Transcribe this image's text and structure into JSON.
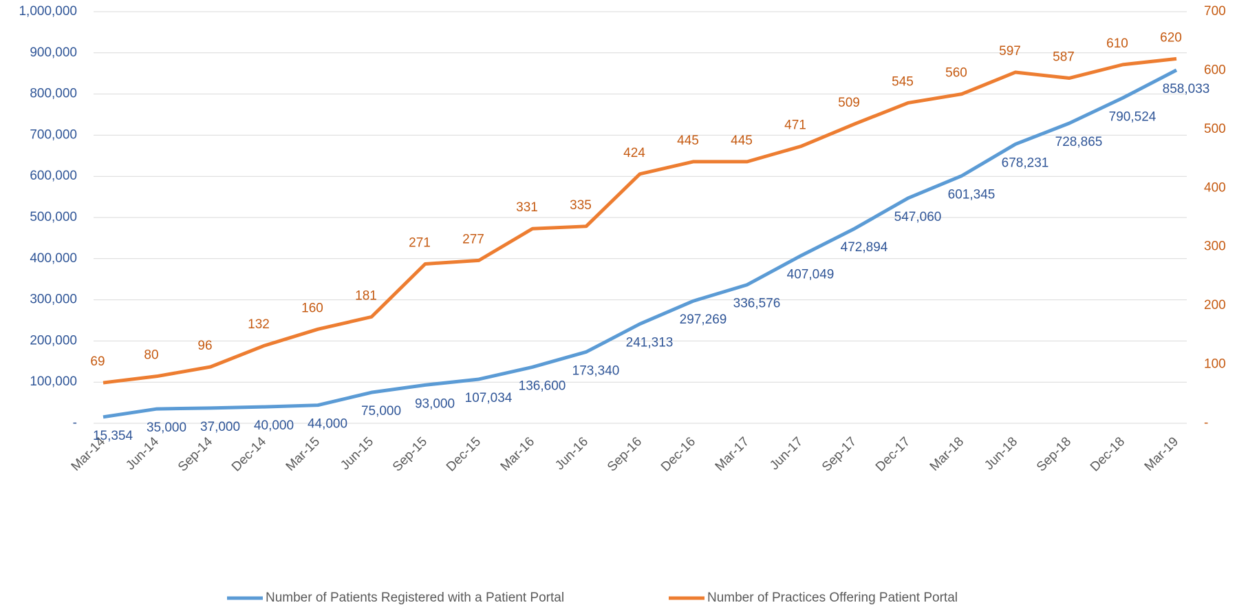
{
  "chart_data": {
    "type": "line",
    "categories": [
      "Mar-14",
      "Jun-14",
      "Sep-14",
      "Dec-14",
      "Mar-15",
      "Jun-15",
      "Sep-15",
      "Dec-15",
      "Mar-16",
      "Jun-16",
      "Sep-16",
      "Dec-16",
      "Mar-17",
      "Jun-17",
      "Sep-17",
      "Dec-17",
      "Mar-18",
      "Jun-18",
      "Sep-18",
      "Dec-18",
      "Mar-19"
    ],
    "series": [
      {
        "name": "Number of Patients Registered with a Patient Portal",
        "color": "#5b9bd5",
        "label_color": "#2f5597",
        "values": [
          15354,
          35000,
          37000,
          40000,
          44000,
          75000,
          93000,
          107034,
          136600,
          173340,
          241313,
          297269,
          336576,
          407049,
          472894,
          547060,
          601345,
          678231,
          728865,
          790524,
          858033
        ],
        "value_labels": [
          "15,354",
          "35,000",
          "37,000",
          "40,000",
          "44,000",
          "75,000",
          "93,000",
          "107,034",
          "136,600",
          "173,340",
          "241,313",
          "297,269",
          "336,576",
          "407,049",
          "472,894",
          "547,060",
          "601,345",
          "678,231",
          "728,865",
          "790,524",
          "858,033"
        ]
      },
      {
        "name": "Number of Practices Offering Patient Portal",
        "color": "#ed7d31",
        "label_color": "#c55a11",
        "axis": "y2",
        "values": [
          69,
          80,
          96,
          132,
          160,
          181,
          271,
          277,
          331,
          335,
          424,
          445,
          445,
          471,
          509,
          545,
          560,
          597,
          587,
          610,
          620
        ]
      }
    ],
    "ylim": [
      0,
      1000000
    ],
    "yticks": [
      {
        "value": 0,
        "label": "-"
      },
      {
        "value": 100000,
        "label": "100,000"
      },
      {
        "value": 200000,
        "label": "200,000"
      },
      {
        "value": 300000,
        "label": "300,000"
      },
      {
        "value": 400000,
        "label": "400,000"
      },
      {
        "value": 500000,
        "label": "500,000"
      },
      {
        "value": 600000,
        "label": "600,000"
      },
      {
        "value": 700000,
        "label": "700,000"
      },
      {
        "value": 800000,
        "label": "800,000"
      },
      {
        "value": 900000,
        "label": "900,000"
      },
      {
        "value": 1000000,
        "label": "1,000,000"
      }
    ],
    "y2lim": [
      0,
      700
    ],
    "y2ticks": [
      {
        "value": 0,
        "label": "-"
      },
      100,
      200,
      300,
      400,
      500,
      600,
      700
    ],
    "grid": true,
    "legend": "bottom"
  }
}
